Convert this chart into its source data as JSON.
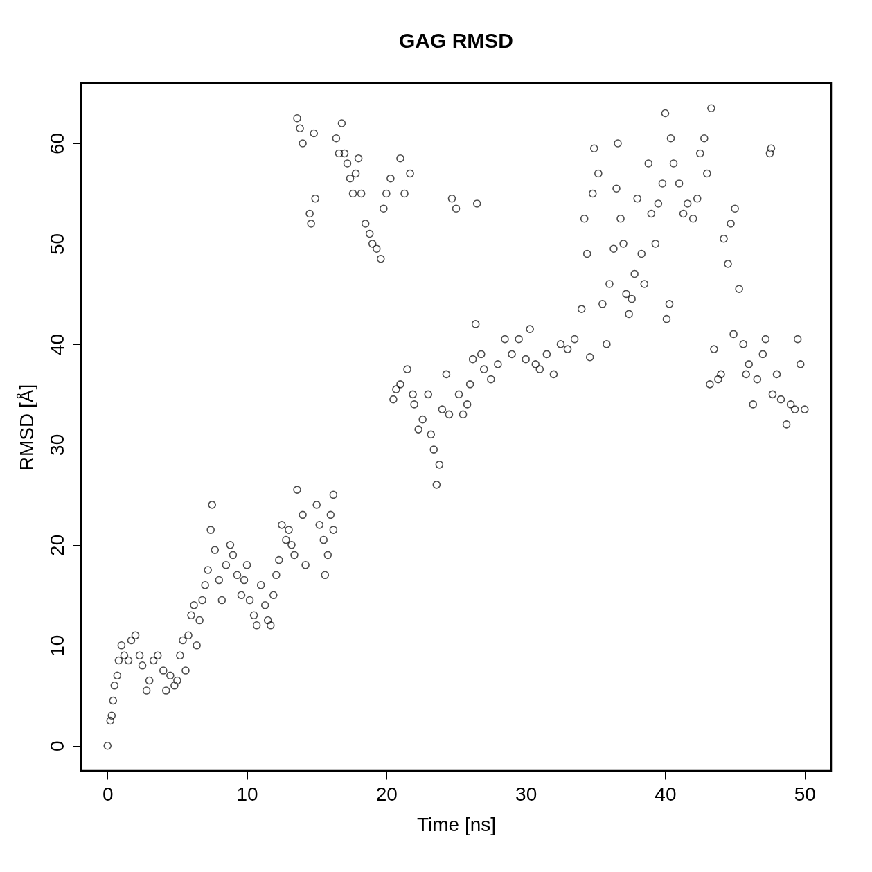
{
  "chart_data": {
    "type": "scatter",
    "title": "GAG RMSD",
    "xlabel": "Time [ns]",
    "ylabel": "RMSD [Å]",
    "xlim": [
      -1.9,
      51.9
    ],
    "ylim": [
      -2.5,
      66
    ],
    "xticks": [
      0,
      10,
      20,
      30,
      40,
      50
    ],
    "yticks": [
      0,
      10,
      20,
      30,
      40,
      50,
      60
    ],
    "marker": "circle",
    "color": "#000000",
    "x": [
      0,
      0.2,
      0.3,
      0.4,
      0.5,
      0.7,
      0.8,
      1,
      1.2,
      1.5,
      1.7,
      2,
      2.3,
      2.5,
      2.8,
      3,
      3.3,
      3.6,
      4,
      4.2,
      4.5,
      4.8,
      5,
      5.2,
      5.4,
      5.6,
      5.8,
      6,
      6.2,
      6.4,
      6.6,
      6.8,
      7,
      7.2,
      7.4,
      7.5,
      7.7,
      8,
      8.2,
      8.5,
      8.8,
      9,
      9.3,
      9.6,
      9.8,
      10,
      10.2,
      10.5,
      10.7,
      11,
      11.3,
      11.5,
      11.7,
      11.9,
      12.1,
      12.3,
      12.5,
      12.8,
      13,
      13.2,
      13.4,
      13.6,
      13.6,
      13.8,
      14,
      14,
      14.2,
      14.5,
      14.6,
      14.8,
      14.9,
      15,
      15.2,
      15.5,
      15.6,
      15.8,
      16,
      16.2,
      16.2,
      16.4,
      16.6,
      16.8,
      17,
      17.2,
      17.4,
      17.6,
      17.8,
      18,
      18.2,
      18.5,
      18.8,
      19,
      19.3,
      19.6,
      19.8,
      20,
      20.3,
      20.5,
      20.7,
      21,
      21,
      21.3,
      21.5,
      21.7,
      21.9,
      22,
      22.3,
      22.6,
      23,
      23.2,
      23.4,
      23.6,
      23.8,
      24,
      24.3,
      24.5,
      24.7,
      25,
      25.2,
      25.5,
      25.8,
      26,
      26.2,
      26.4,
      26.5,
      26.8,
      27,
      27.5,
      28,
      28.5,
      29,
      29.5,
      30,
      30.3,
      30.7,
      31,
      31.5,
      32,
      32.5,
      33,
      33.5,
      34,
      34.2,
      34.4,
      34.6,
      34.8,
      34.9,
      35.2,
      35.5,
      35.8,
      36,
      36.3,
      36.5,
      36.6,
      36.8,
      37,
      37.2,
      37.4,
      37.6,
      37.8,
      38,
      38.3,
      38.5,
      38.8,
      39,
      39.3,
      39.5,
      39.8,
      40,
      40.1,
      40.3,
      40.4,
      40.6,
      41,
      41.3,
      41.6,
      42,
      42.3,
      42.5,
      42.8,
      43,
      43.3,
      43.2,
      43.5,
      43.8,
      44,
      44.2,
      44.5,
      44.7,
      44.9,
      45,
      45.3,
      45.6,
      45.8,
      46,
      46.3,
      46.6,
      47,
      47.2,
      47.5,
      47.6,
      47.7,
      48,
      48.3,
      48.7,
      49,
      49.3,
      49.5,
      49.7,
      50
    ],
    "values": [
      0,
      2.5,
      3,
      4.5,
      6,
      7,
      8.5,
      10,
      9,
      8.5,
      10.5,
      11,
      9,
      8,
      5.5,
      6.5,
      8.5,
      9,
      7.5,
      5.5,
      7,
      6,
      6.5,
      9,
      10.5,
      7.5,
      11,
      13,
      14,
      10,
      12.5,
      14.5,
      16,
      17.5,
      21.5,
      24,
      19.5,
      16.5,
      14.5,
      18,
      20,
      19,
      17,
      15,
      16.5,
      18,
      14.5,
      13,
      12,
      16,
      14,
      12.5,
      12,
      15,
      17,
      18.5,
      22,
      20.5,
      21.5,
      20,
      19,
      25.5,
      62.5,
      61.5,
      60,
      23,
      18,
      53,
      52,
      61,
      54.5,
      24,
      22,
      20.5,
      17,
      19,
      23,
      25,
      21.5,
      60.5,
      59,
      62,
      59,
      58,
      56.5,
      55,
      57,
      58.5,
      55,
      52,
      51,
      50,
      49.5,
      48.5,
      53.5,
      55,
      56.5,
      34.5,
      35.5,
      58.5,
      36,
      55,
      37.5,
      57,
      35,
      34,
      31.5,
      32.5,
      35,
      31,
      29.5,
      26,
      28,
      33.5,
      37,
      33,
      54.5,
      53.5,
      35,
      33,
      34,
      36,
      38.5,
      42,
      54,
      39,
      37.5,
      36.5,
      38,
      40.5,
      39,
      40.5,
      38.5,
      41.5,
      38,
      37.5,
      39,
      37,
      40,
      39.5,
      40.5,
      43.5,
      52.5,
      49,
      38.7,
      55,
      59.5,
      57,
      44,
      40,
      46,
      49.5,
      55.5,
      60,
      52.5,
      50,
      45,
      43,
      44.5,
      47,
      54.5,
      49,
      46,
      58,
      53,
      50,
      54,
      56,
      63,
      42.5,
      44,
      60.5,
      58,
      56,
      53,
      54,
      52.5,
      54.5,
      59,
      60.5,
      57,
      63.5,
      36,
      39.5,
      36.5,
      37,
      50.5,
      48,
      52,
      41,
      53.5,
      45.5,
      40,
      37,
      38,
      34,
      36.5,
      39,
      40.5,
      59,
      59.5,
      35,
      37,
      34.5,
      32,
      34,
      33.5,
      40.5,
      38,
      33.5
    ]
  }
}
